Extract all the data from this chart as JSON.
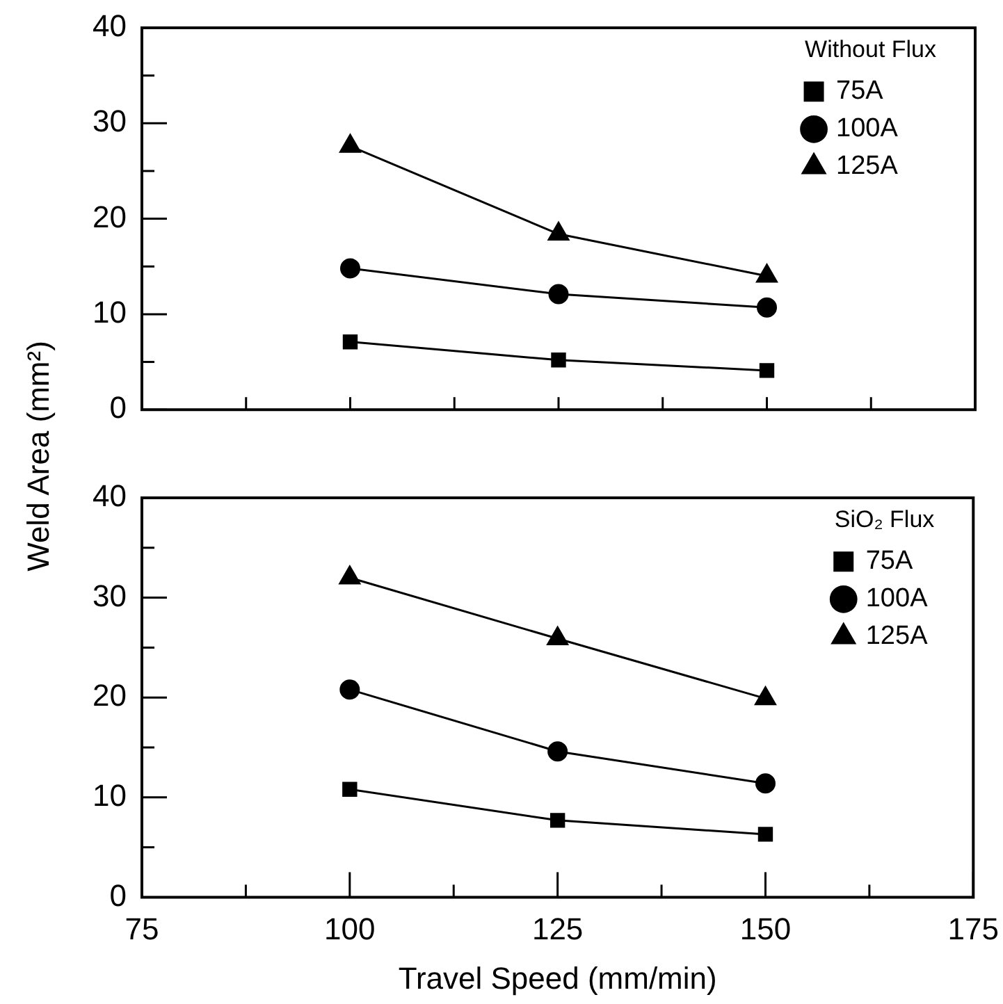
{
  "chart_data": [
    {
      "type": "line",
      "ylabel": "Weld Area (mm²)",
      "legend_title": "Without Flux",
      "legend": "top right",
      "grid": false,
      "tick_labels": "y",
      "x": [
        100,
        125,
        150
      ],
      "xlim": [
        75,
        175
      ],
      "xticks": [
        {
          "value": 75,
          "label": null
        },
        {
          "value": 87.5,
          "label": null
        },
        {
          "value": 100,
          "label": null
        },
        {
          "value": 112.5,
          "label": null
        },
        {
          "value": 125,
          "label": null
        },
        {
          "value": 137.5,
          "label": null
        },
        {
          "value": 150,
          "label": null
        },
        {
          "value": 162.5,
          "label": null
        },
        {
          "value": 175,
          "label": null
        }
      ],
      "ylim": [
        0,
        40
      ],
      "yticks": [
        0,
        {
          "value": 5,
          "label": null
        },
        10,
        {
          "value": 15,
          "label": null
        },
        20,
        {
          "value": 25,
          "label": null
        },
        30,
        {
          "value": 35,
          "label": null
        },
        40
      ],
      "series": [
        {
          "name": "75A",
          "color": "#000000",
          "marker": "square",
          "values": [
            7.1,
            5.2,
            4.1
          ]
        },
        {
          "name": "100A",
          "color": "#000000",
          "marker": "circle",
          "values": [
            14.8,
            12.1,
            10.7
          ]
        },
        {
          "name": "125A",
          "color": "#000000",
          "marker": "triangle",
          "values": [
            27.6,
            18.4,
            14.0
          ]
        }
      ]
    },
    {
      "type": "line",
      "xlabel": "Travel Speed (mm/min)",
      "legend_title": "SiO₂ Flux",
      "legend": "top right",
      "grid": false,
      "x": [
        100,
        125,
        150
      ],
      "xlim": [
        75,
        175
      ],
      "xticks": [
        75,
        {
          "value": 87.5,
          "label": null
        },
        100,
        {
          "value": 112.5,
          "label": null
        },
        125,
        {
          "value": 137.5,
          "label": null
        },
        150,
        {
          "value": 162.5,
          "label": null
        },
        175
      ],
      "ylim": [
        0,
        40
      ],
      "yticks": [
        0,
        {
          "value": 5,
          "label": null
        },
        10,
        {
          "value": 15,
          "label": null
        },
        20,
        {
          "value": 25,
          "label": null
        },
        30,
        {
          "value": 35,
          "label": null
        },
        40
      ],
      "series": [
        {
          "name": "75A",
          "color": "#000000",
          "marker": "square",
          "values": [
            10.8,
            7.7,
            6.3
          ]
        },
        {
          "name": "100A",
          "color": "#000000",
          "marker": "circle",
          "values": [
            20.8,
            14.6,
            11.4
          ]
        },
        {
          "name": "125A",
          "color": "#000000",
          "marker": "triangle",
          "values": [
            32.0,
            25.9,
            19.9
          ]
        }
      ]
    }
  ]
}
